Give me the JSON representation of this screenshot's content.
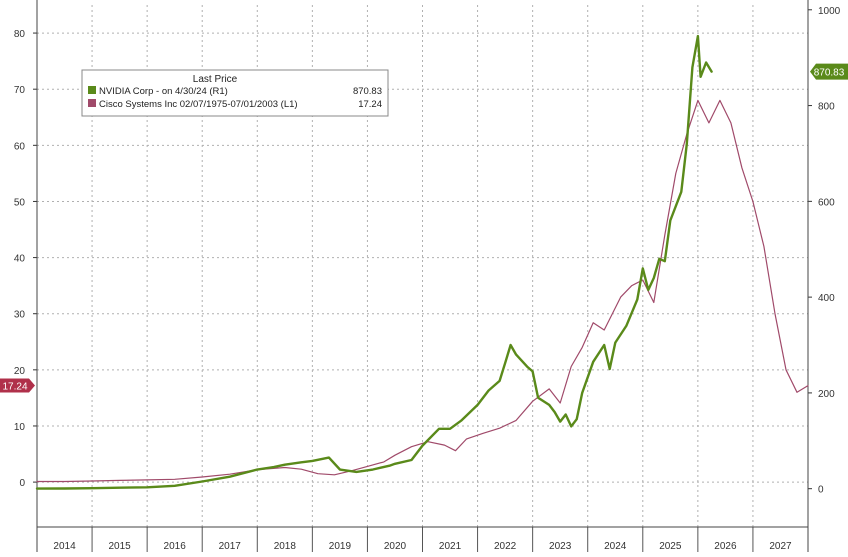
{
  "chart_data": {
    "type": "line",
    "title": "",
    "xlabel": "",
    "ylabel": "",
    "x_ticks": [
      "2014",
      "2015",
      "2016",
      "2017",
      "2018",
      "2019",
      "2020",
      "2021",
      "2022",
      "2023",
      "2024",
      "2025",
      "2026",
      "2027"
    ],
    "x_range": [
      2013.5,
      2027.5
    ],
    "y_left": {
      "range": [
        -8,
        85
      ],
      "ticks": [
        0,
        10,
        20,
        30,
        40,
        50,
        60,
        70,
        80
      ]
    },
    "y_right": {
      "range": [
        -80,
        1010
      ],
      "ticks": [
        0,
        200,
        400,
        600,
        800,
        1000
      ]
    },
    "grid": true,
    "legend": {
      "title": "Last Price",
      "position": "top-left",
      "entries": [
        {
          "series": 0,
          "label": "NVIDIA Corp -  on 4/30/24  (R1)",
          "value": "870.83"
        },
        {
          "series": 1,
          "label": "Cisco Systems Inc 02/07/1975-07/01/2003  (L1)",
          "value": "17.24"
        }
      ]
    },
    "series": [
      {
        "name": "NVIDIA Corp",
        "axis": "right",
        "color": "#5a8a1a",
        "last_value_label": "870.83",
        "points": [
          [
            2013.5,
            0.2
          ],
          [
            2014.0,
            0.3
          ],
          [
            2014.5,
            1.0
          ],
          [
            2015.0,
            2.0
          ],
          [
            2015.5,
            3.0
          ],
          [
            2016.0,
            6.0
          ],
          [
            2016.5,
            15.0
          ],
          [
            2017.0,
            25.0
          ],
          [
            2017.5,
            40.0
          ],
          [
            2017.8,
            45.0
          ],
          [
            2018.0,
            50.0
          ],
          [
            2018.3,
            55.0
          ],
          [
            2018.5,
            58.0
          ],
          [
            2018.8,
            65.0
          ],
          [
            2019.0,
            40.0
          ],
          [
            2019.3,
            35.0
          ],
          [
            2019.6,
            40.0
          ],
          [
            2019.9,
            48.0
          ],
          [
            2020.0,
            52.0
          ],
          [
            2020.3,
            60.0
          ],
          [
            2020.5,
            90.0
          ],
          [
            2020.8,
            125.0
          ],
          [
            2021.0,
            125.0
          ],
          [
            2021.2,
            142.0
          ],
          [
            2021.5,
            175.0
          ],
          [
            2021.7,
            205.0
          ],
          [
            2021.9,
            225.0
          ],
          [
            2022.0,
            262.0
          ],
          [
            2022.1,
            300.0
          ],
          [
            2022.2,
            280.0
          ],
          [
            2022.4,
            255.0
          ],
          [
            2022.5,
            245.0
          ],
          [
            2022.6,
            190.0
          ],
          [
            2022.8,
            175.0
          ],
          [
            2022.9,
            160.0
          ],
          [
            2023.0,
            140.0
          ],
          [
            2023.1,
            155.0
          ],
          [
            2023.2,
            130.0
          ],
          [
            2023.3,
            145.0
          ],
          [
            2023.4,
            200.0
          ],
          [
            2023.6,
            265.0
          ],
          [
            2023.8,
            300.0
          ],
          [
            2023.9,
            250.0
          ],
          [
            2024.0,
            305.0
          ],
          [
            2024.2,
            340.0
          ],
          [
            2024.4,
            395.0
          ],
          [
            2024.5,
            460.0
          ],
          [
            2024.6,
            415.0
          ],
          [
            2024.7,
            440.0
          ],
          [
            2024.8,
            480.0
          ],
          [
            2024.9,
            475.0
          ],
          [
            2025.0,
            560.0
          ],
          [
            2025.2,
            620.0
          ],
          [
            2025.3,
            720.0
          ],
          [
            2025.4,
            880.0
          ],
          [
            2025.5,
            945.0
          ],
          [
            2025.55,
            860.0
          ],
          [
            2025.65,
            890.0
          ],
          [
            2025.75,
            870.83
          ]
        ]
      },
      {
        "name": "Cisco Systems Inc",
        "axis": "left",
        "color": "#a04a6a",
        "last_value_label": "17.24",
        "points": [
          [
            2013.5,
            0.1
          ],
          [
            2014.0,
            0.1
          ],
          [
            2014.5,
            0.2
          ],
          [
            2015.0,
            0.3
          ],
          [
            2015.5,
            0.4
          ],
          [
            2016.0,
            0.5
          ],
          [
            2016.5,
            0.9
          ],
          [
            2017.0,
            1.4
          ],
          [
            2017.5,
            2.2
          ],
          [
            2018.0,
            2.6
          ],
          [
            2018.3,
            2.3
          ],
          [
            2018.6,
            1.5
          ],
          [
            2018.9,
            1.3
          ],
          [
            2019.2,
            2.0
          ],
          [
            2019.5,
            2.8
          ],
          [
            2019.8,
            3.6
          ],
          [
            2020.0,
            4.8
          ],
          [
            2020.3,
            6.3
          ],
          [
            2020.6,
            7.2
          ],
          [
            2020.9,
            6.6
          ],
          [
            2021.1,
            5.6
          ],
          [
            2021.3,
            7.7
          ],
          [
            2021.6,
            8.7
          ],
          [
            2021.9,
            9.6
          ],
          [
            2022.2,
            11.0
          ],
          [
            2022.5,
            14.4
          ],
          [
            2022.8,
            16.6
          ],
          [
            2023.0,
            14.1
          ],
          [
            2023.2,
            20.6
          ],
          [
            2023.4,
            24.0
          ],
          [
            2023.6,
            28.4
          ],
          [
            2023.8,
            27.1
          ],
          [
            2024.1,
            33.0
          ],
          [
            2024.3,
            35.0
          ],
          [
            2024.5,
            36.0
          ],
          [
            2024.7,
            32.0
          ],
          [
            2024.9,
            44.0
          ],
          [
            2025.1,
            55.0
          ],
          [
            2025.3,
            62.0
          ],
          [
            2025.5,
            68.0
          ],
          [
            2025.7,
            64.0
          ],
          [
            2025.9,
            68.0
          ],
          [
            2026.1,
            64.0
          ],
          [
            2026.3,
            56.0
          ],
          [
            2026.5,
            50.0
          ],
          [
            2026.7,
            42.0
          ],
          [
            2026.9,
            30.0
          ],
          [
            2027.1,
            20.0
          ],
          [
            2027.3,
            16.0
          ],
          [
            2027.5,
            17.2
          ]
        ]
      }
    ]
  }
}
